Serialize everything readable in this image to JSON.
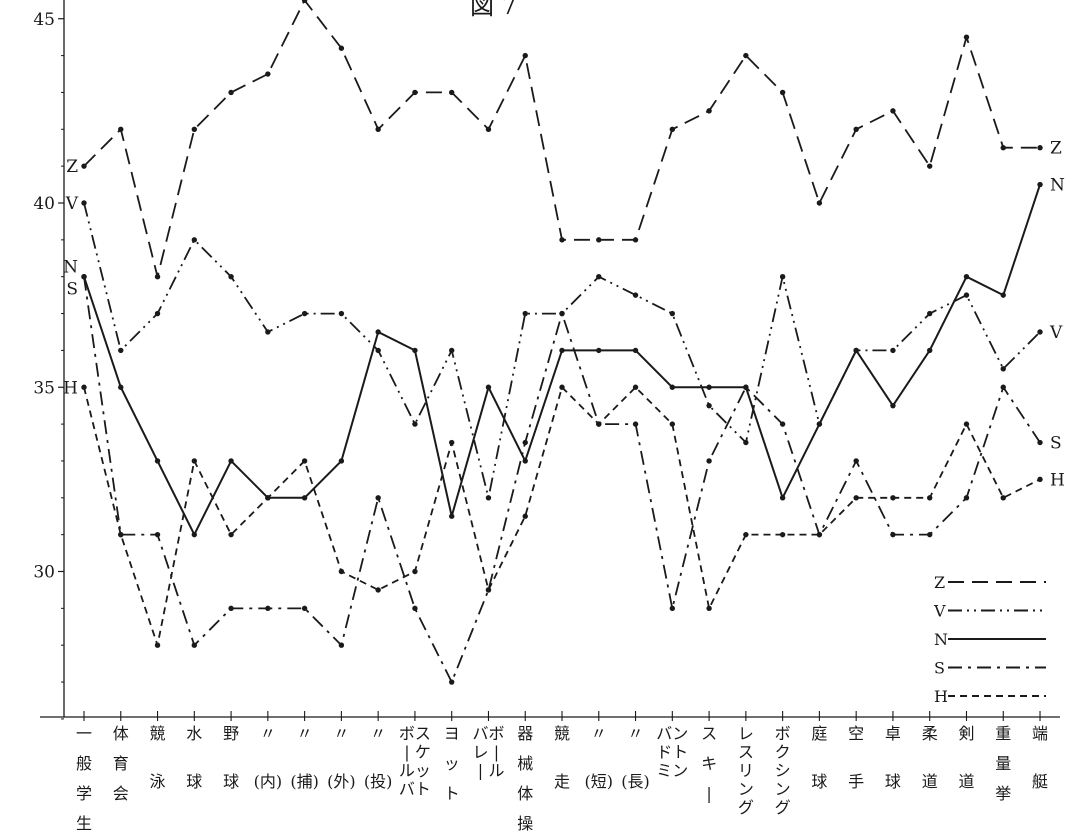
{
  "title": "図 7",
  "chart_data": {
    "type": "line",
    "ylim": [
      25.8,
      45.5
    ],
    "yticks": [
      30,
      35,
      40,
      45
    ],
    "legend_position": "bottom-right",
    "grid": false,
    "categories": [
      "一般学生",
      "体育会",
      "競泳",
      "水球",
      "野球",
      "〃(内)",
      "〃(捕)",
      "〃(外)",
      "〃(投)",
      "バスケットボール",
      "ヨット",
      "バレーボール",
      "器械体操",
      "競走",
      "〃(短)",
      "〃(長)",
      "バドミントン",
      "スキー",
      "レスリング",
      "ボクシング",
      "庭球",
      "空手",
      "卓球",
      "柔道",
      "剣道",
      "重量挙",
      "端艇"
    ],
    "category_columns": [
      [
        "一",
        "般",
        "学",
        "生"
      ],
      [
        "体",
        "育",
        "会"
      ],
      [
        "競",
        "泳"
      ],
      [
        "水",
        "球"
      ],
      [
        "野",
        "球"
      ],
      [
        "〃",
        "(内)"
      ],
      [
        "〃",
        "(捕)"
      ],
      [
        "〃",
        "(外)"
      ],
      [
        "〃",
        "(投)"
      ],
      [
        "ボ",
        "|",
        "ル",
        "バ",
        "ス",
        "ケ",
        "ッ",
        "ト"
      ],
      [
        "ヨ",
        "ッ",
        "ト"
      ],
      [
        "バ",
        "レ",
        "|",
        "ボ",
        "|",
        "ル"
      ],
      [
        "器",
        "械",
        "体",
        "操"
      ],
      [
        "競",
        "走"
      ],
      [
        "〃",
        "(短)"
      ],
      [
        "〃",
        "(長)"
      ],
      [
        "バ",
        "ド",
        "ミ",
        "ン",
        "ト",
        "ン"
      ],
      [
        "ス",
        "キ",
        "|"
      ],
      [
        "レ",
        "ス",
        "リ",
        "ン",
        "グ"
      ],
      [
        "ボ",
        "ク",
        "シ",
        "ン",
        "グ"
      ],
      [
        "庭",
        "球"
      ],
      [
        "空",
        "手"
      ],
      [
        "卓",
        "球"
      ],
      [
        "柔",
        "道"
      ],
      [
        "剣",
        "道"
      ],
      [
        "重",
        "量",
        "挙"
      ],
      [
        "端",
        "艇"
      ]
    ],
    "series": [
      {
        "name": "Z",
        "dash": "long-dash",
        "values": [
          41,
          42,
          38,
          42,
          43,
          43.5,
          45.5,
          44.2,
          42,
          43,
          43,
          42,
          44,
          39,
          39,
          39,
          42,
          42.5,
          44,
          43,
          40,
          42,
          42.5,
          41,
          44.5,
          41.5,
          41.5
        ]
      },
      {
        "name": "V",
        "dash": "dash-dot-dot",
        "values": [
          40,
          36,
          37,
          39,
          38,
          36.5,
          37,
          37,
          36,
          34,
          36,
          32,
          37,
          37,
          38,
          37.5,
          37,
          34.5,
          33.5,
          38,
          34,
          36,
          36,
          37,
          37.5,
          35.5,
          36.5
        ]
      },
      {
        "name": "N",
        "dash": "solid",
        "values": [
          38,
          35,
          33,
          31,
          33,
          32,
          32,
          33,
          36.5,
          36,
          31.5,
          35,
          33,
          36,
          36,
          36,
          35,
          35,
          35,
          32,
          34,
          36,
          34.5,
          36,
          38,
          37.5,
          40.5
        ]
      },
      {
        "name": "S",
        "dash": "dash-dot",
        "values": [
          38,
          31,
          31,
          28,
          29,
          29,
          29,
          28,
          32,
          29,
          27,
          29.5,
          33.5,
          37,
          34,
          34,
          29,
          33,
          35,
          34,
          31,
          33,
          31,
          31,
          32,
          35,
          33.5
        ]
      },
      {
        "name": "H",
        "dash": "short-dash",
        "values": [
          35,
          31,
          28,
          33,
          31,
          32,
          33,
          30,
          29.5,
          30,
          33.5,
          29.5,
          31.5,
          35,
          34,
          35,
          34,
          29,
          31,
          31,
          31,
          32,
          32,
          32,
          34,
          32,
          32.5
        ]
      }
    ],
    "left_labels": [
      "Z",
      "V",
      "N",
      "S",
      "H"
    ],
    "right_labels": [
      "Z",
      "N",
      "V",
      "S",
      "H"
    ]
  },
  "colors": {
    "ink": "#1a1a1a",
    "background": "#ffffff"
  }
}
